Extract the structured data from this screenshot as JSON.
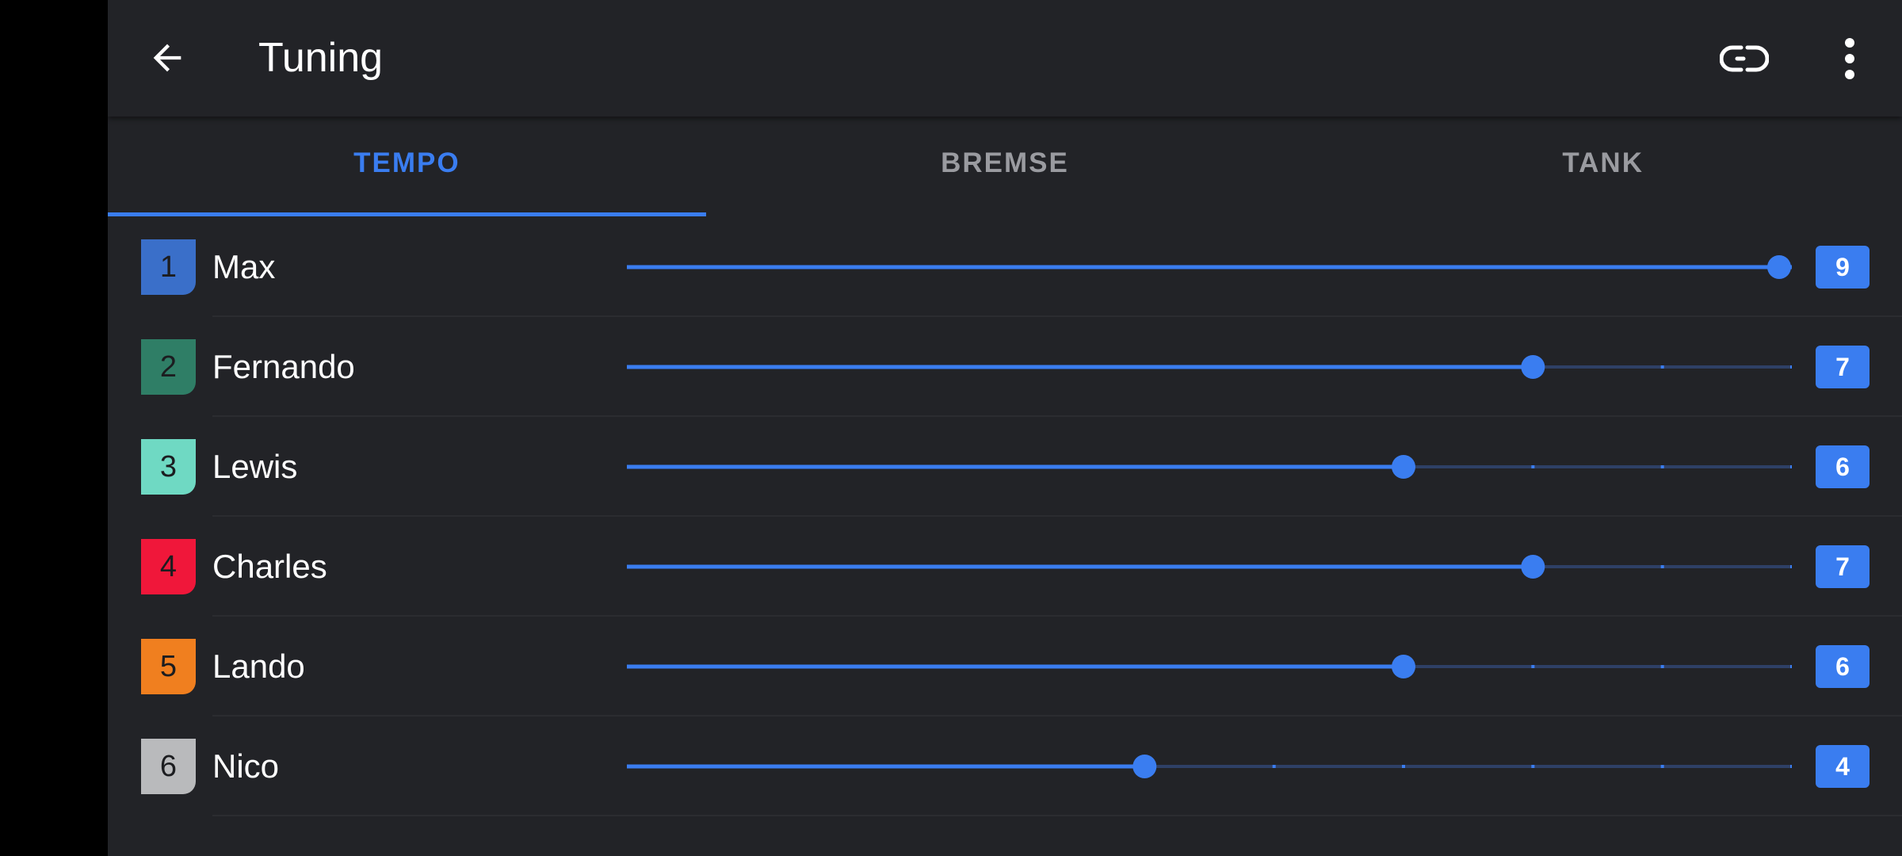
{
  "app": {
    "title": "Tuning",
    "icons": {
      "back": "arrow-back-icon",
      "link": "link-icon",
      "more": "more-vert-icon"
    }
  },
  "tabs": [
    {
      "label": "TEMPO",
      "active": true
    },
    {
      "label": "BREMSE",
      "active": false
    },
    {
      "label": "TANK",
      "active": false
    }
  ],
  "slider": {
    "min": 0,
    "max": 9,
    "accent": "#3a7df0",
    "track_inactive": "#2e4066"
  },
  "drivers": [
    {
      "number": "1",
      "name": "Max",
      "value": 9,
      "value_label": "9",
      "color": "#3a6fc9"
    },
    {
      "number": "2",
      "name": "Fernando",
      "value": 7,
      "value_label": "7",
      "color": "#2f7e66"
    },
    {
      "number": "3",
      "name": "Lewis",
      "value": 6,
      "value_label": "6",
      "color": "#6fd9c3"
    },
    {
      "number": "4",
      "name": "Charles",
      "value": 7,
      "value_label": "7",
      "color": "#f0173a"
    },
    {
      "number": "5",
      "name": "Lando",
      "value": 6,
      "value_label": "6",
      "color": "#f07f1f"
    },
    {
      "number": "6",
      "name": "Nico",
      "value": 4,
      "value_label": "4",
      "color": "#b9babc"
    }
  ]
}
